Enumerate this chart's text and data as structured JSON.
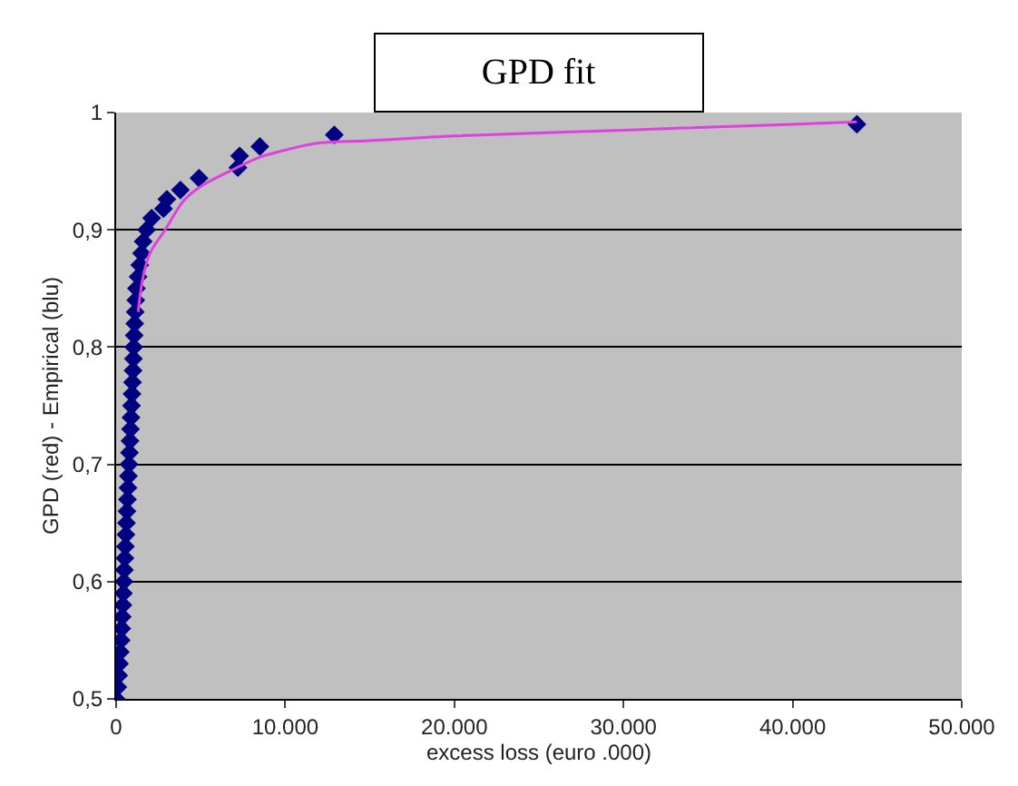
{
  "chart_data": {
    "type": "scatter",
    "title": "GPD fit",
    "xlabel": "excess loss (euro .000)",
    "ylabel": "GPD (red) - Empirical (blu)",
    "series": [
      {
        "color": "#000080",
        "marker": "diamond",
        "x": [
          0,
          100,
          150,
          200,
          250,
          300,
          330,
          360,
          400,
          430,
          460,
          490,
          520,
          550,
          580,
          610,
          640,
          670,
          700,
          730,
          760,
          790,
          820,
          850,
          880,
          910,
          940,
          970,
          1000,
          1020,
          1040,
          1070,
          1100,
          1130,
          1160,
          1200,
          1300,
          1400,
          1500,
          1600,
          1800,
          2100,
          2800,
          3000,
          3800,
          4900,
          7200,
          7300,
          8500,
          12900,
          43800
        ],
        "values": [
          0.5,
          0.51,
          0.52,
          0.53,
          0.54,
          0.55,
          0.56,
          0.57,
          0.58,
          0.59,
          0.6,
          0.61,
          0.62,
          0.63,
          0.64,
          0.65,
          0.66,
          0.67,
          0.68,
          0.69,
          0.7,
          0.71,
          0.72,
          0.73,
          0.74,
          0.75,
          0.76,
          0.77,
          0.78,
          0.79,
          0.8,
          0.81,
          0.82,
          0.83,
          0.84,
          0.85,
          0.86,
          0.87,
          0.88,
          0.89,
          0.9,
          0.91,
          0.918,
          0.926,
          0.934,
          0.944,
          0.953,
          0.963,
          0.971,
          0.981,
          0.99
        ]
      },
      {
        "type": "line",
        "color": "#e040e0",
        "marker": "none",
        "line_style": "solid",
        "x": [
          1300,
          1600,
          2000,
          2900,
          4000,
          5000,
          7000,
          8500,
          10000,
          12000,
          15000,
          20000,
          30000,
          40000,
          43800
        ],
        "values": [
          0.83,
          0.86,
          0.88,
          0.9,
          0.925,
          0.937,
          0.952,
          0.962,
          0.968,
          0.974,
          0.976,
          0.98,
          0.985,
          0.99,
          0.992
        ]
      }
    ],
    "xlim": [
      0,
      50000
    ],
    "xticks": [
      0,
      {
        "value": 10000,
        "label": "10.000"
      },
      {
        "value": 20000,
        "label": "20.000"
      },
      {
        "value": 30000,
        "label": "30.000"
      },
      {
        "value": 40000,
        "label": "40.000"
      },
      {
        "value": 50000,
        "label": "50.000"
      }
    ],
    "ylim": [
      0.5,
      1
    ],
    "yticks": [
      {
        "value": 0.5,
        "label": "0,5"
      },
      {
        "value": 0.6,
        "label": "0,6"
      },
      {
        "value": 0.7,
        "label": "0,7"
      },
      {
        "value": 0.8,
        "label": "0,8"
      },
      {
        "value": 0.9,
        "label": "0,9"
      },
      1
    ],
    "grid": "y",
    "legend": false
  }
}
